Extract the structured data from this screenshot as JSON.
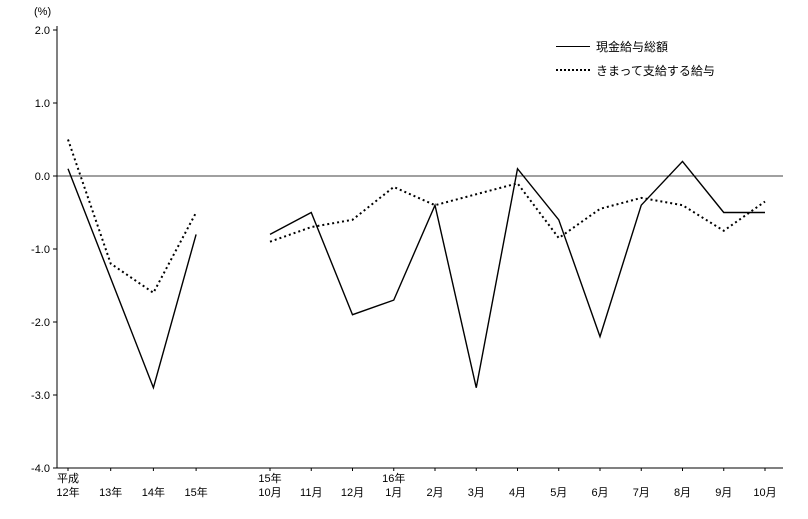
{
  "chart_data": {
    "type": "line",
    "unit_label": "(%)",
    "ylim": [
      -4.0,
      2.0
    ],
    "yticks": [
      2.0,
      1.0,
      0.0,
      -1.0,
      -2.0,
      -3.0,
      -4.0
    ],
    "ytick_labels": [
      "2.0",
      "1.0",
      "0.0",
      "-1.0",
      "-2.0",
      "-3.0",
      "-4.0"
    ],
    "grid": "zero-line-only",
    "legend_position": "top-right",
    "line_color": "#000000",
    "groups": [
      {
        "name": "annual",
        "categories_line1": [
          "平成",
          "",
          "",
          ""
        ],
        "categories_line2": [
          "12年",
          "13年",
          "14年",
          "15年"
        ],
        "series": [
          {
            "name": "現金給与総額",
            "style": "solid",
            "values": [
              0.1,
              -1.4,
              -2.9,
              -0.8
            ]
          },
          {
            "name": "きまって支給する給与",
            "style": "dotted",
            "values": [
              0.5,
              -1.2,
              -1.6,
              -0.5
            ]
          }
        ]
      },
      {
        "name": "monthly",
        "categories_line1": [
          "15年",
          "",
          "",
          "16年",
          "",
          "",
          "",
          "",
          "",
          "",
          "",
          "",
          ""
        ],
        "categories_line2": [
          "10月",
          "11月",
          "12月",
          "1月",
          "2月",
          "3月",
          "4月",
          "5月",
          "6月",
          "7月",
          "8月",
          "9月",
          "10月"
        ],
        "series": [
          {
            "name": "現金給与総額",
            "style": "solid",
            "values": [
              -0.8,
              -0.5,
              -1.9,
              -1.7,
              -0.4,
              -2.9,
              0.1,
              -0.6,
              -2.2,
              -0.4,
              0.2,
              -0.5,
              -0.5
            ]
          },
          {
            "name": "きまって支給する給与",
            "style": "dotted",
            "values": [
              -0.9,
              -0.7,
              -0.6,
              -0.15,
              -0.4,
              -0.25,
              -0.1,
              -0.85,
              -0.45,
              -0.3,
              -0.4,
              -0.75,
              -0.35
            ]
          }
        ]
      }
    ],
    "legend": [
      {
        "label": "現金給与総額",
        "style": "solid"
      },
      {
        "label": "きまって支給する給与",
        "style": "dotted"
      }
    ]
  }
}
